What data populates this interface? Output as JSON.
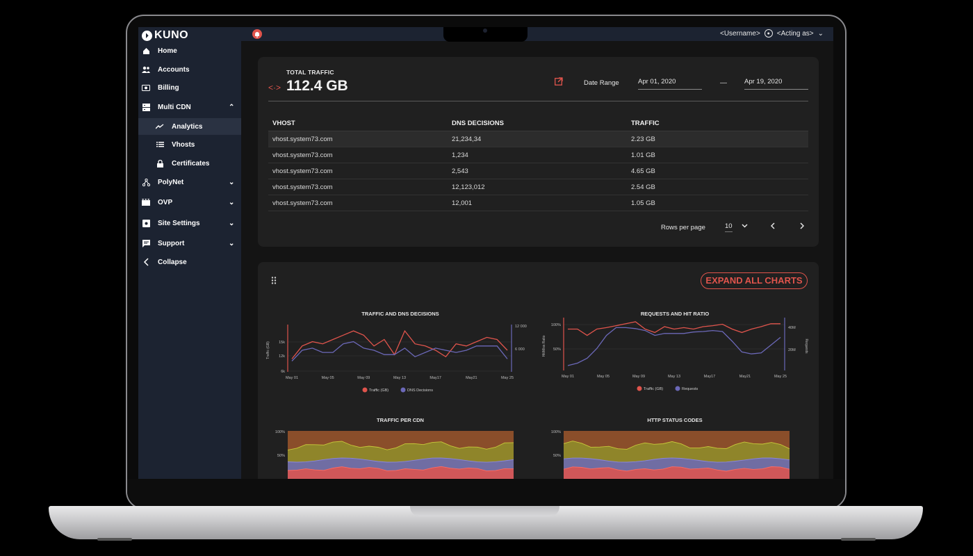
{
  "app": {
    "logo_text": "KUNO"
  },
  "topbar": {
    "username": "<Username>",
    "acting_as": "<Acting as>"
  },
  "sidebar": {
    "items": [
      {
        "label": "Home",
        "icon": "home-icon"
      },
      {
        "label": "Accounts",
        "icon": "users-icon"
      },
      {
        "label": "Billing",
        "icon": "billing-icon"
      },
      {
        "label": "Multi CDN",
        "icon": "server-icon",
        "expanded": true
      },
      {
        "label": "Analytics",
        "icon": "trending-icon",
        "active": true
      },
      {
        "label": "Vhosts",
        "icon": "list-icon"
      },
      {
        "label": "Certificates",
        "icon": "lock-icon"
      },
      {
        "label": "PolyNet",
        "icon": "network-icon"
      },
      {
        "label": "OVP",
        "icon": "video-icon"
      },
      {
        "label": "Site Settings",
        "icon": "settings-icon"
      },
      {
        "label": "Support",
        "icon": "chat-icon"
      },
      {
        "label": "Collapse",
        "icon": "chevron-left-icon"
      }
    ]
  },
  "summary": {
    "label": "TOTAL TRAFFIC",
    "value": "112.4 GB",
    "date_range_label": "Date Range",
    "date_from": "Apr 01, 2020",
    "date_to": "Apr 19, 2020",
    "separator": "—"
  },
  "table": {
    "headers": [
      "VHOST",
      "DNS DECISIONS",
      "TRAFFIC"
    ],
    "rows": [
      [
        "vhost.system73.com",
        "21,234,34",
        "2.23 GB"
      ],
      [
        "vhost.system73.com",
        "1,234",
        "1.01 GB"
      ],
      [
        "vhost.system73.com",
        "2,543",
        "4.65 GB"
      ],
      [
        "vhost.system73.com",
        "12,123,012",
        "2.54 GB"
      ],
      [
        "vhost.system73.com",
        "12,001",
        "1.05 GB"
      ]
    ],
    "rows_per_page_label": "Rows per page",
    "rows_per_page": "10"
  },
  "charts_panel": {
    "expand_label": "EXPAND ALL CHARTS"
  },
  "colors": {
    "red": "#e0544c",
    "purple": "#6b68b8",
    "olive": "#8f8f2a",
    "brown": "#8a4e2a"
  },
  "chart_data": [
    {
      "type": "line",
      "title": "TRAFFIC AND DNS DECISIONS",
      "ylabel": "Traffic (GB)",
      "x_ticks": [
        "May 01",
        "May 05",
        "May 09",
        "May 13",
        "May17",
        "May21",
        "May 25"
      ],
      "y_ticks_left": [
        "15k",
        "12k",
        "6k"
      ],
      "y_ticks_right": [
        "12 000",
        "6 000"
      ],
      "series": [
        {
          "name": "Traffic (GB)",
          "values": [
            9,
            12,
            13,
            12.5,
            13.5,
            14.5,
            15.5,
            14.5,
            12,
            13.5,
            10,
            15.5,
            12.5,
            12,
            11,
            9.5,
            12.5,
            12,
            13,
            14,
            13.5,
            11
          ]
        },
        {
          "name": "DNS Decisions",
          "values": [
            8.5,
            11,
            11.5,
            10.5,
            10.5,
            12.5,
            13,
            11.5,
            11,
            10,
            10,
            11.5,
            9.5,
            10.5,
            11.5,
            11,
            10.5,
            11,
            12,
            12,
            12,
            9
          ]
        }
      ]
    },
    {
      "type": "line",
      "title": "REQUESTS AND HIT RATIO",
      "ylabel": "Hit/Miss Ratio",
      "y2label": "Requests",
      "x_ticks": [
        "May 01",
        "May 05",
        "May 09",
        "May 13",
        "May17",
        "May21",
        "May 25"
      ],
      "y_ticks_left": [
        "100%",
        "50%"
      ],
      "y_ticks_right": [
        "40M",
        "20M"
      ],
      "series": [
        {
          "name": "Traffic (GB)",
          "values": [
            85,
            85,
            72,
            85,
            88,
            92,
            96,
            100,
            85,
            78,
            90,
            85,
            88,
            85,
            90,
            92,
            95,
            85,
            78,
            85,
            90,
            96,
            96
          ]
        },
        {
          "name": "Requests",
          "values": [
            10,
            15,
            25,
            45,
            72,
            88,
            88,
            86,
            82,
            72,
            76,
            76,
            76,
            79,
            80,
            82,
            80,
            60,
            38,
            34,
            36,
            52,
            68
          ]
        }
      ]
    },
    {
      "type": "area",
      "title": "TRAFFIC PER CDN",
      "y_ticks": [
        "100%",
        "50%"
      ]
    },
    {
      "type": "area",
      "title": "HTTP STATUS CODES",
      "y_ticks": [
        "100%",
        "50%"
      ]
    }
  ]
}
